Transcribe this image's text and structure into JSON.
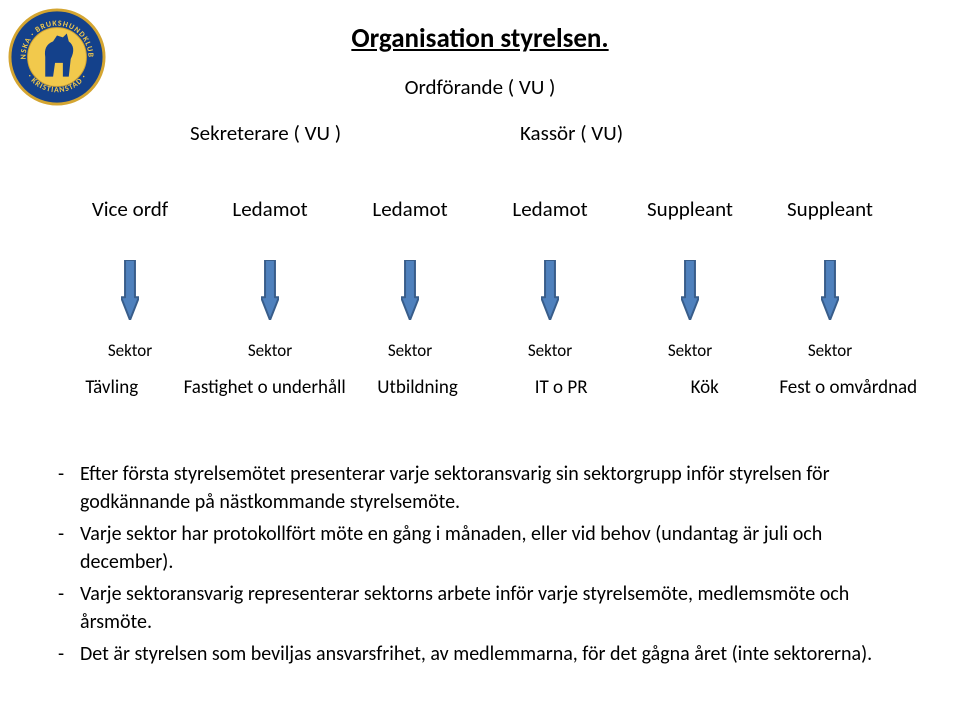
{
  "title": "Organisation styrelsen.",
  "ordforande": "Ordförande  ( VU )",
  "sekreterare": "Sekreterare ( VU )",
  "kassor": "Kassör ( VU)",
  "board": [
    "Vice ordf",
    "Ledamot",
    "Ledamot",
    "Ledamot",
    "Suppleant",
    "Suppleant"
  ],
  "sektor_label": "Sektor",
  "sektorer": [
    "Tävling",
    "Fastighet o underhåll",
    "Utbildning",
    "IT o PR",
    "Kök",
    "Fest  o omvårdnad"
  ],
  "arrow": {
    "fill": "#4f81bd",
    "stroke": "#385d8a",
    "stroke_width": 2,
    "width": 18,
    "height": 60
  },
  "bullets": [
    "Efter första styrelsemötet presenterar varje sektoransvarig  sin sektorgrupp inför styrelsen för godkännande på nästkommande styrelsemöte.",
    "Varje sektor har protokollfört möte en gång i månaden, eller vid behov (undantag är juli och december).",
    "Varje sektoransvarig  representerar sektorns arbete inför varje styrelsemöte, medlemsmöte och årsmöte.",
    "Det är styrelsen som beviljas ansvarsfrihet, av medlemmarna, för det gågna året (inte sektorerna)."
  ],
  "logo": {
    "outer_fill": "#14418b",
    "outer_stroke": "#d4a531",
    "inner_fill": "#f2c94c",
    "text_color": "#f2c94c",
    "top_text": "SVENSKA",
    "side_text_l": "BRUKSHUND",
    "side_text_r": "KLUBBEN",
    "bottom_text": "KRISTIANSTAD"
  }
}
